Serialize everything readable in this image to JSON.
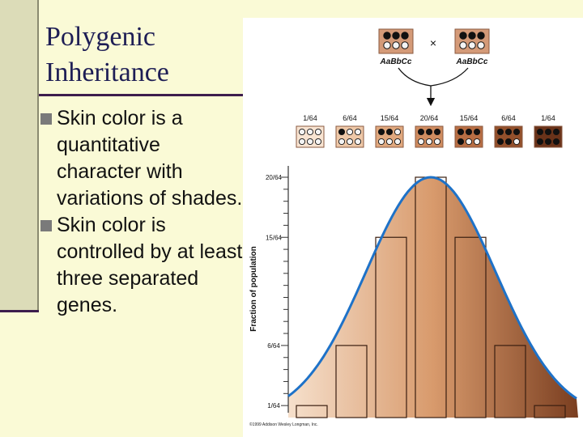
{
  "slide": {
    "title_lines": [
      "Polygenic",
      "Inheritance"
    ],
    "bullets": [
      "Skin color is a quantitative character with variations of shades.",
      "Skin color is controlled by at least three separated genes."
    ]
  },
  "figure": {
    "parent_1_genotype": "AaBbCc",
    "parent_2_genotype": "AaBbCc",
    "cross_symbol": "×",
    "y_axis_label": "Fraction of population",
    "credit": "©1999 Addison Wesley Longman, Inc.",
    "offspring_classes": [
      {
        "fraction": "1/64",
        "dark_dots": 0
      },
      {
        "fraction": "6/64",
        "dark_dots": 1
      },
      {
        "fraction": "15/64",
        "dark_dots": 2
      },
      {
        "fraction": "20/64",
        "dark_dots": 3
      },
      {
        "fraction": "15/64",
        "dark_dots": 4
      },
      {
        "fraction": "6/64",
        "dark_dots": 5
      },
      {
        "fraction": "1/64",
        "dark_dots": 6
      }
    ],
    "y_tick_labels": [
      "20/64",
      "15/64",
      "6/64",
      "1/64"
    ],
    "swatch_colors": [
      "#f8e4d2",
      "#eec8a8",
      "#e0a87e",
      "#cf8c60",
      "#b86e44",
      "#93502c",
      "#6a331a"
    ],
    "curve_color": "#1e72c8"
  },
  "chart_data": {
    "type": "bar",
    "categories": [
      "0",
      "1",
      "2",
      "3",
      "4",
      "5",
      "6"
    ],
    "values": [
      1,
      6,
      15,
      20,
      15,
      6,
      1
    ],
    "ylabel": "Fraction of population",
    "ylim": [
      0,
      20
    ]
  }
}
